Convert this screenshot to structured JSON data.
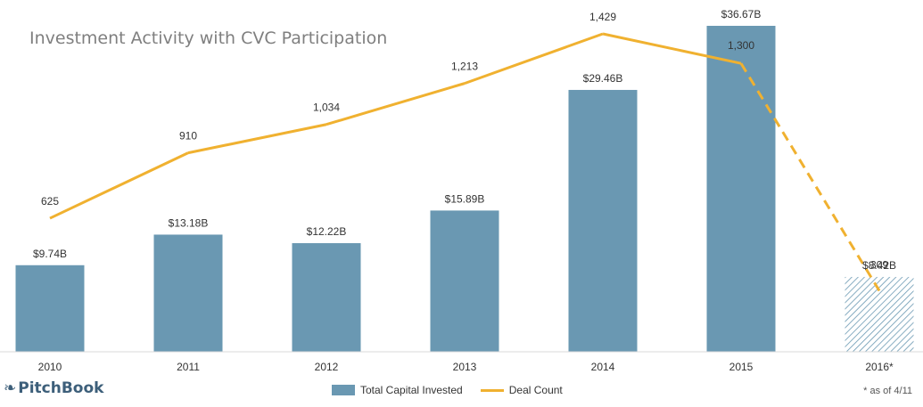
{
  "title": "Investment Activity with CVC Participation",
  "brand": {
    "name": "PitchBook"
  },
  "footnote": "* as of 4/11",
  "legend": {
    "bar_label": "Total Capital Invested",
    "line_label": "Deal Count"
  },
  "colors": {
    "bar": "#6a98b2",
    "line": "#f0b130",
    "projected_hatch": "#6a98b2"
  },
  "chart_data": {
    "type": "bar",
    "categories": [
      "2010",
      "2011",
      "2012",
      "2013",
      "2014",
      "2015",
      "2016*"
    ],
    "series": [
      {
        "name": "Total Capital Invested",
        "type": "bar",
        "values": [
          9.74,
          13.18,
          12.22,
          15.89,
          29.46,
          36.67,
          8.42
        ],
        "labels": [
          "$9.74B",
          "$13.18B",
          "$12.22B",
          "$15.89B",
          "$29.46B",
          "$36.67B",
          "$8.42B"
        ],
        "hatched": [
          false,
          false,
          false,
          false,
          false,
          false,
          true
        ]
      },
      {
        "name": "Deal Count",
        "type": "line",
        "values": [
          625,
          910,
          1034,
          1213,
          1429,
          1300,
          309
        ],
        "labels": [
          "625",
          "910",
          "1,034",
          "1,213",
          "1,429",
          "1,300",
          "309"
        ],
        "dashed_last_segment": true
      }
    ],
    "grid": false,
    "legend_position": "bottom"
  }
}
